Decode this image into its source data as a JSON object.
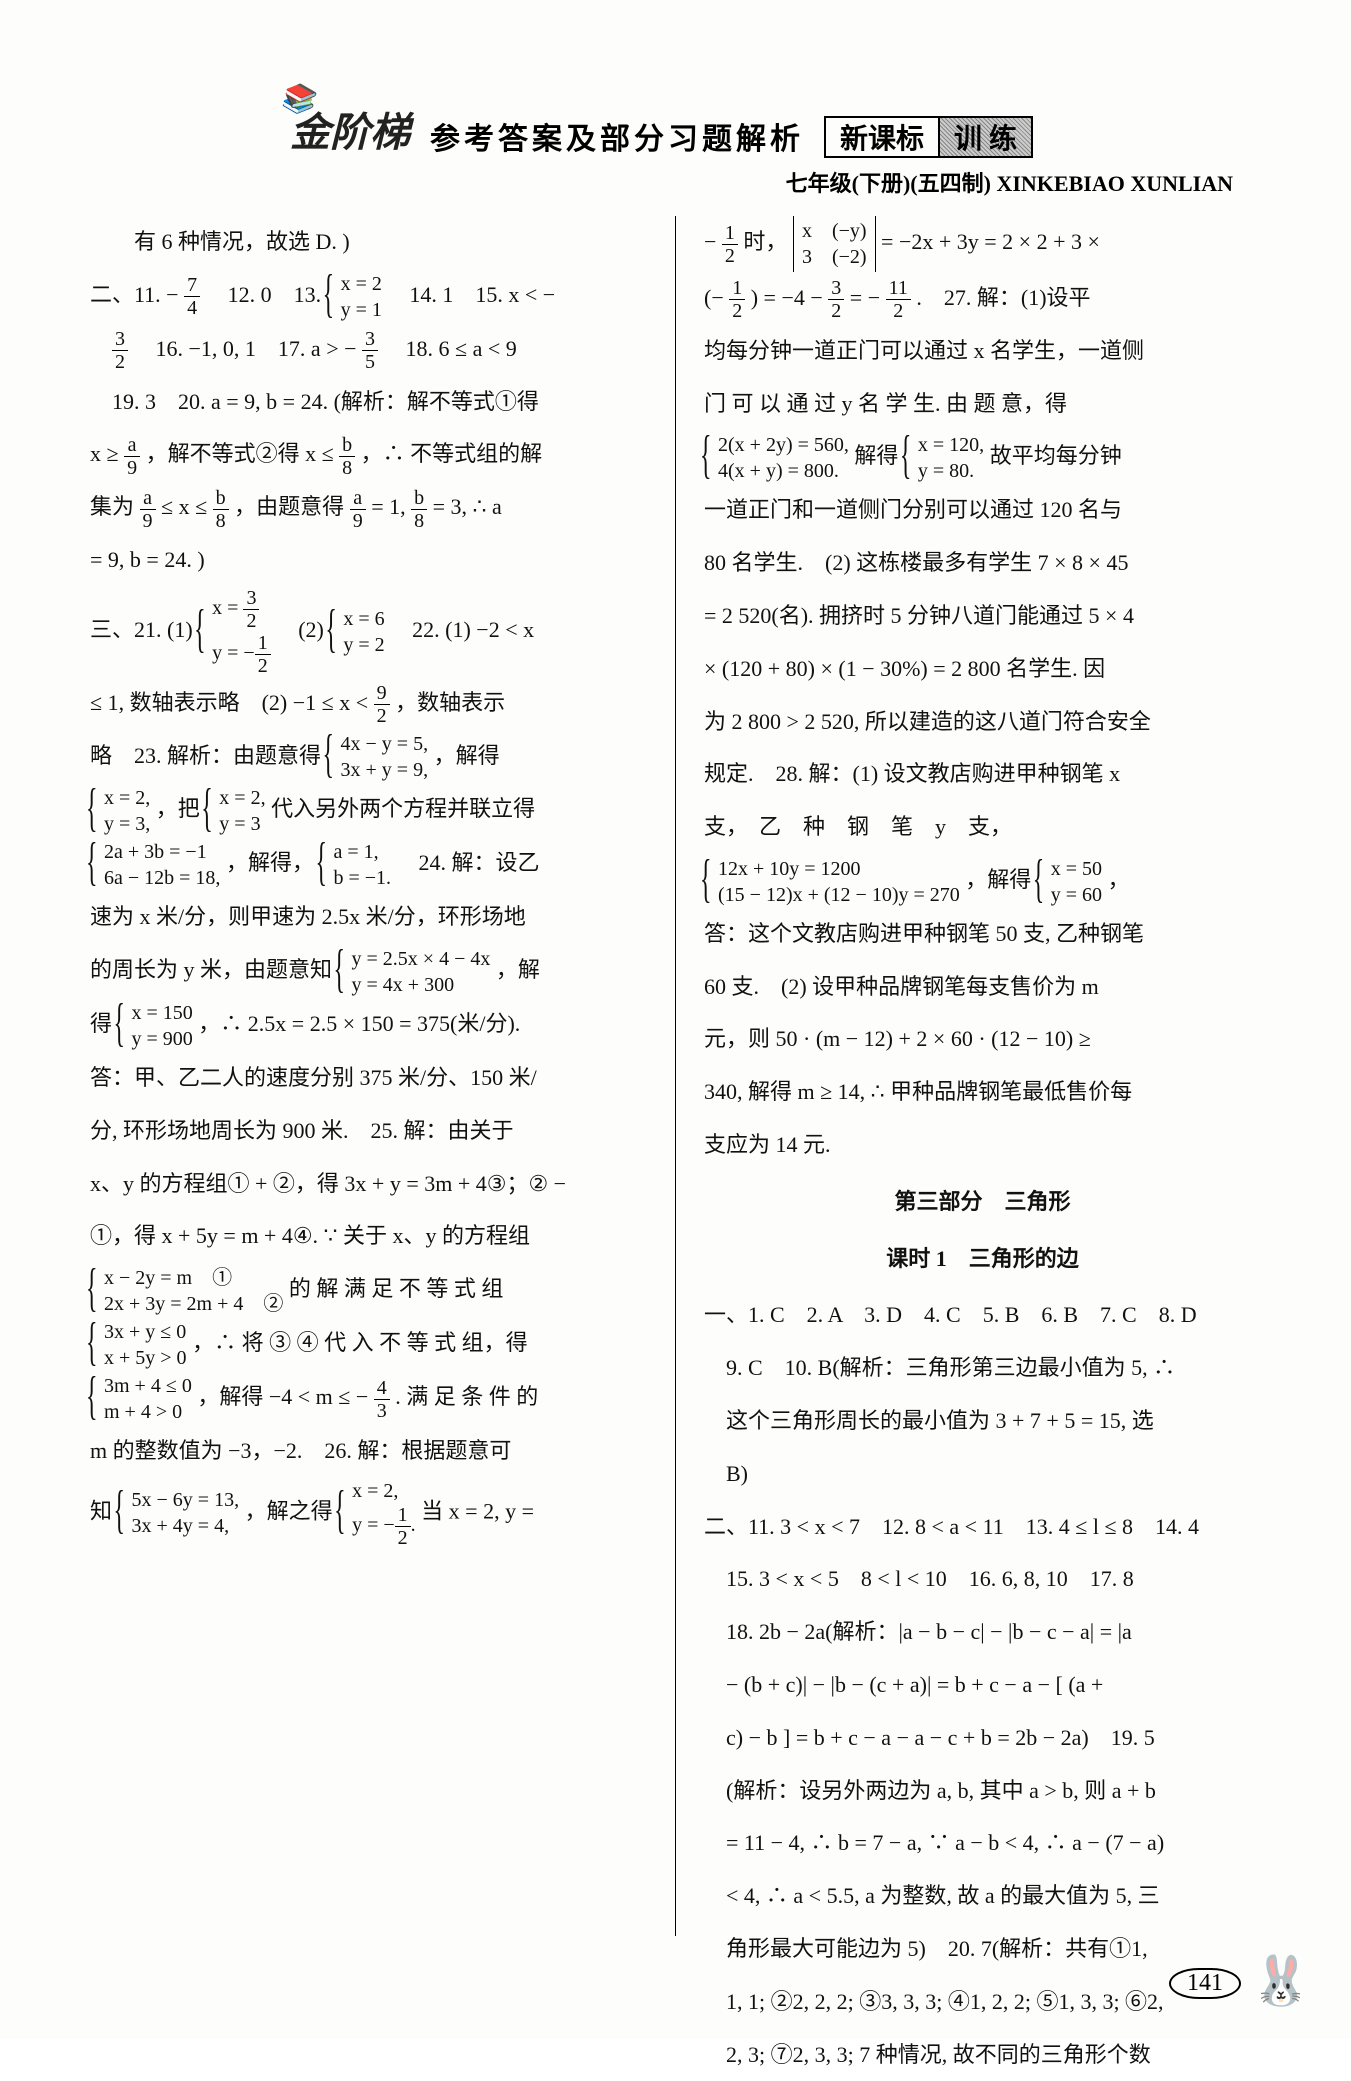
{
  "header": {
    "logo": "金阶梯",
    "logo_icon": "📚",
    "title": "参考答案及部分习题解析",
    "box1": "新课标",
    "box2": "训 练"
  },
  "subheader": "七年级(下册)(五四制)  XINKEBIAO XUNLIAN",
  "left": {
    "l1": "有 6 种情况，故选 D. )",
    "l2a": "二、11. −",
    "l2b": "　12. 0　13. ",
    "l2c": "　14. 1　15. x < −",
    "frac_7_4_n": "7",
    "frac_7_4_d": "4",
    "sys13_1": "x = 2",
    "sys13_2": "y = 1",
    "l3a": "　16. −1, 0, 1　17. a > −",
    "l3b": "　18. 6 ≤ a < 9",
    "frac_3_2_n": "3",
    "frac_3_2_d": "2",
    "frac_3_5_n": "3",
    "frac_3_5_d": "5",
    "l4": "　19. 3　20. a = 9, b = 24. (解析：解不等式①得",
    "l5a": "x ≥ ",
    "l5b": "，解不等式②得 x ≤ ",
    "l5c": "，∴ 不等式组的解",
    "frac_a_9_n": "a",
    "frac_a_9_d": "9",
    "frac_b_8_n": "b",
    "frac_b_8_d": "8",
    "l6a": "集为 ",
    "l6b": " ≤ x ≤ ",
    "l6c": "，由题意得 ",
    "l6d": " = 1, ",
    "l6e": " = 3, ∴ a",
    "l7": "= 9, b = 24. )",
    "l8a": "三、21. (1) ",
    "l8b": "　(2) ",
    "l8c": "　22. (1) −2 < x",
    "sys21a_1": "x = 3/2",
    "sys21a_2": "y = −1/2",
    "sys21b_1": "x = 6",
    "sys21b_2": "y = 2",
    "l9a": "≤ 1, 数轴表示略　(2) −1 ≤ x < ",
    "l9b": "，数轴表示",
    "frac_9_2_n": "9",
    "frac_9_2_d": "2",
    "l10a": "略　23. 解析：由题意得 ",
    "l10b": "，解得",
    "sys23a_1": "4x − y = 5,",
    "sys23a_2": "3x + y = 9,",
    "l11a": "",
    "l11b": "，把 ",
    "l11c": " 代入另外两个方程并联立得",
    "sys23b_1": "x = 2,",
    "sys23b_2": "y = 3,",
    "sys23c_1": "x = 2,",
    "sys23c_2": "y = 3",
    "l12a": "",
    "l12b": "，解得，",
    "l12c": "　24. 解：设乙",
    "sys23d_1": "2a + 3b = −1",
    "sys23d_2": "6a − 12b = 18,",
    "sys23e_1": "a = 1,",
    "sys23e_2": "b = −1.",
    "l13": "速为 x 米/分，则甲速为 2.5x 米/分，环形场地",
    "l14a": "的周长为 y 米，由题意知 ",
    "l14b": "，解",
    "sys24a_1": "y = 2.5x × 4 − 4x",
    "sys24a_2": "y = 4x + 300",
    "l15a": "得 ",
    "l15b": "，∴ 2.5x = 2.5 × 150 = 375(米/分).",
    "sys24b_1": "x = 150",
    "sys24b_2": "y = 900",
    "l16": "答：甲、乙二人的速度分别 375 米/分、150 米/",
    "l17": "分, 环形场地周长为 900 米.　25. 解：由关于",
    "l18": "x、y 的方程组① + ②，得 3x + y = 3m + 4③；② −",
    "l19": "①，得 x + 5y = m + 4④. ∵ 关于 x、y 的方程组",
    "l20a": "",
    "l20b": " 的 解 满 足 不 等 式 组",
    "sys25a_1": "x − 2y = m　①",
    "sys25a_2": "2x + 3y = 2m + 4　②",
    "l21a": "",
    "l21b": "，∴ 将 ③ ④ 代 入 不 等 式 组，得",
    "sys25b_1": "3x + y ≤ 0",
    "sys25b_2": "x + 5y > 0",
    "l22a": "",
    "l22b": "，解得 −4 < m ≤ −",
    "l22c": ". 满 足 条 件 的",
    "sys25c_1": "3m + 4 ≤ 0",
    "sys25c_2": "m + 4 > 0",
    "frac_4_3_n": "4",
    "frac_4_3_d": "3",
    "l23": "m 的整数值为 −3，−2.　26. 解：根据题意可",
    "l24a": "知 ",
    "l24b": "，解之得 ",
    "l24c": " 当 x = 2, y =",
    "sys26a_1": "5x − 6y = 13,",
    "sys26a_2": "3x + 4y = 4,",
    "sys26b_1": "x = 2,",
    "sys26b_2": "y = −1/2."
  },
  "right": {
    "r1a": "−",
    "r1b": "时，",
    "r1c": " = −2x + 3y = 2 × 2 + 3 ×",
    "frac_1_2_n": "1",
    "frac_1_2_d": "2",
    "det_11": "x",
    "det_12": "(−y)",
    "det_21": "3",
    "det_22": "(−2)",
    "r2a": "(−",
    "r2b": ") = −4 − ",
    "r2c": " = −",
    "r2d": ".　27. 解：(1)设平",
    "frac_3_2r_n": "3",
    "frac_3_2r_d": "2",
    "frac_11_2_n": "11",
    "frac_11_2_d": "2",
    "r3": "均每分钟一道正门可以通过 x 名学生，一道侧",
    "r4": "门 可 以 通 过 y 名 学 生. 由 题 意，得",
    "r5a": "",
    "r5b": " 解得 ",
    "r5c": " 故平均每分钟",
    "sys27a_1": "2(x + 2y) = 560,",
    "sys27a_2": "4(x + y) = 800.",
    "sys27b_1": "x = 120,",
    "sys27b_2": "y = 80.",
    "r6": "一道正门和一道侧门分别可以通过 120 名与",
    "r7": "80 名学生.　(2) 这栋楼最多有学生 7 × 8 × 45",
    "r8": "= 2 520(名). 拥挤时 5 分钟八道门能通过 5 × 4",
    "r9": "× (120 + 80) × (1 − 30%) = 2 800 名学生. 因",
    "r10": "为 2 800 > 2 520, 所以建造的这八道门符合安全",
    "r11": "规定.　28. 解：(1) 设文教店购进甲种钢笔 x",
    "r12": "支，　乙　种　钢　笔　y　支，",
    "r13a": "",
    "r13b": "，解得 ",
    "r13c": "，",
    "sys28a_1": "12x + 10y = 1200",
    "sys28a_2": "(15 − 12)x + (12 − 10)y = 270",
    "sys28b_1": "x = 50",
    "sys28b_2": "y = 60",
    "r14": "答：这个文教店购进甲种钢笔 50 支, 乙种钢笔",
    "r15": "60 支.　(2) 设甲种品牌钢笔每支售价为 m",
    "r16": "元，则 50 · (m − 12) + 2 × 60 · (12 − 10) ≥",
    "r17": "340, 解得 m ≥ 14, ∴ 甲种品牌钢笔最低售价每",
    "r18": "支应为 14 元.",
    "part3": "第三部分　三角形",
    "lesson1": "课时 1　三角形的边",
    "r19": "一、1. C　2. A　3. D　4. C　5. B　6. B　7. C　8. D",
    "r20": "　9. C　10. B(解析：三角形第三边最小值为 5, ∴",
    "r21": "　这个三角形周长的最小值为 3 + 7 + 5 = 15, 选",
    "r22": "　B)",
    "r23": "二、11. 3 < x < 7　12. 8 < a < 11　13. 4 ≤ l ≤ 8　14. 4",
    "r24": "　15. 3 < x < 5　8 < l < 10　16. 6, 8, 10　17. 8",
    "r25": "　18. 2b − 2a(解析：|a − b − c| − |b − c − a| = |a",
    "r26": "　− (b + c)| − |b − (c + a)| = b + c − a − [ (a +",
    "r27": "　c) − b ] = b + c − a − a − c + b = 2b − 2a)　19. 5",
    "r28": "　(解析：设另外两边为 a, b, 其中 a > b, 则 a + b",
    "r29": "　= 11 − 4, ∴ b = 7 − a, ∵ a − b < 4, ∴ a − (7 − a)",
    "r30": "　< 4, ∴ a < 5.5, a 为整数, 故 a 的最大值为 5, 三",
    "r31": "　角形最大可能边为 5)　20. 7(解析：共有①1,",
    "r32": "　1, 1; ②2, 2, 2; ③3, 3, 3; ④1, 2, 2; ⑤1, 3, 3; ⑥2,",
    "r33": "　2, 3; ⑦2, 3, 3; 7 种情况, 故不同的三角形个数"
  },
  "page_number": "141",
  "rabbit": "🐰"
}
